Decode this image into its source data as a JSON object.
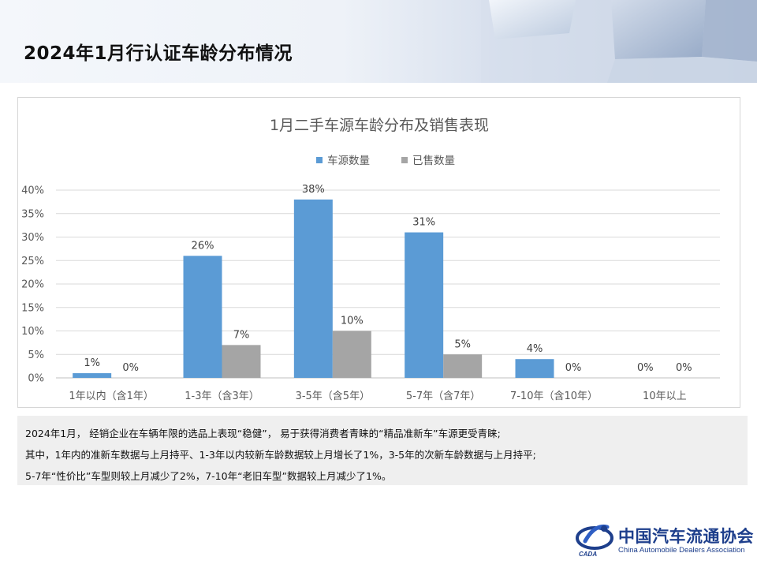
{
  "page": {
    "title": "2024年1月行认证车龄分布情况"
  },
  "chart_data": {
    "type": "bar",
    "title": "1月二手车源车龄分布及销售表现",
    "categories": [
      "1年以内（含1年）",
      "1-3年（含3年）",
      "3-5年（含5年）",
      "5-7年（含7年）",
      "7-10年（含10年）",
      "10年以上"
    ],
    "series": [
      {
        "name": "车源数量",
        "color": "#5b9bd5",
        "values": [
          1,
          26,
          38,
          31,
          4,
          0
        ]
      },
      {
        "name": "已售数量",
        "color": "#a5a5a5",
        "values": [
          0,
          7,
          10,
          5,
          0,
          0
        ]
      }
    ],
    "ylim": [
      0,
      40
    ],
    "yticks": [
      "0%",
      "5%",
      "10%",
      "15%",
      "20%",
      "25%",
      "30%",
      "35%",
      "40%"
    ],
    "value_suffix": "%",
    "legend_position": "top",
    "grid": true
  },
  "notes": {
    "line1": "2024年1月， 经销企业在车辆年限的选品上表现“稳健”， 易于获得消费者青睐的“精品准新车”车源更受青睐;",
    "line2": "其中，1年内的准新车数据与上月持平、1-3年以内较新车龄数据较上月增长了1%，3-5年的次新车龄数据与上月持平;",
    "line3": "5-7年“性价比”车型则较上月减少了2%，7-10年“老旧车型”数据较上月减少了1%。"
  },
  "logo": {
    "name": "中国汽车流通协会",
    "english": "China Automobile Dealers Association",
    "mark_text": "CADA"
  }
}
